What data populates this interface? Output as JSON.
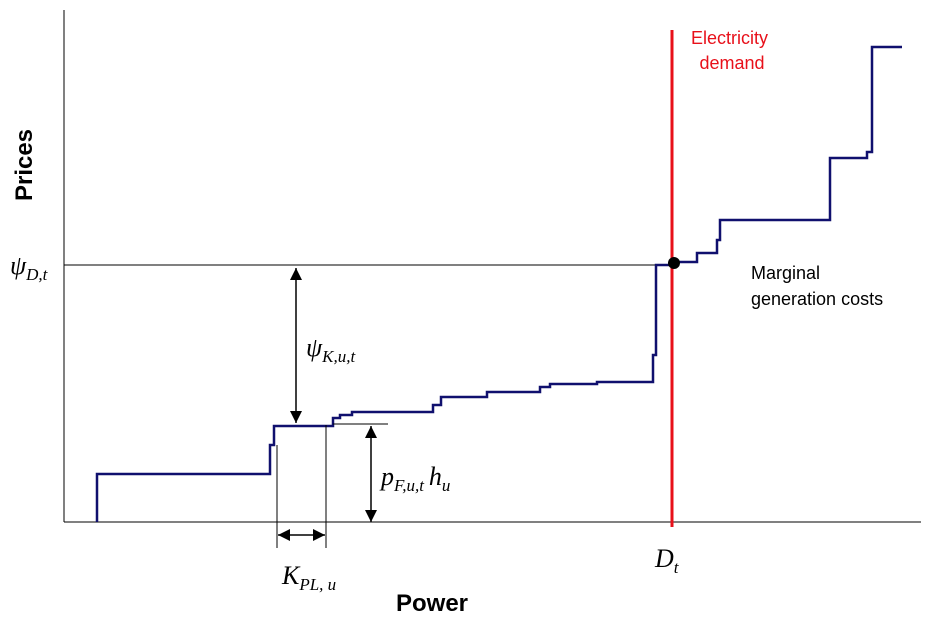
{
  "axes": {
    "y_label": "Prices",
    "x_label": "Power"
  },
  "labels": {
    "demand": [
      "Electricity",
      "demand"
    ],
    "marginal_costs": [
      "Marginal",
      "generation costs"
    ],
    "psi_D_t": {
      "symbol": "ψ",
      "subscript": "D,t"
    },
    "psi_K_u_t": {
      "symbol": "ψ",
      "subscript": "K,u,t"
    },
    "p_F_u_t_h_u": {
      "symbol": "p",
      "subscript": "F,u,t",
      "symbol2": "h",
      "subscript2": "u"
    },
    "K_PL_u": {
      "symbol": "K",
      "subscript": "PL, u"
    },
    "D_t": {
      "symbol": "D",
      "subscript": "t"
    }
  }
}
